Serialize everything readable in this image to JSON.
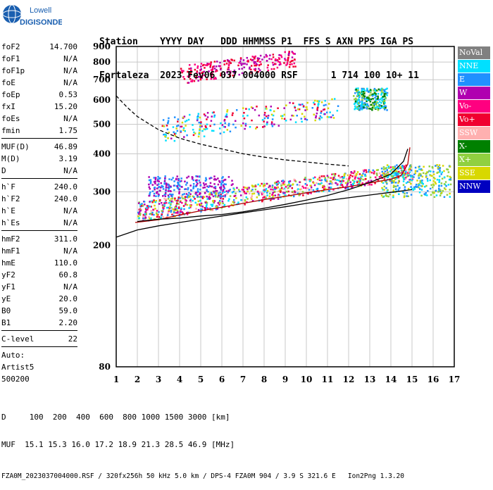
{
  "logo": {
    "line1": "Lowell",
    "line2": "DIGISONDE"
  },
  "header": {
    "line1": "Station    YYYY DAY   DDD HHMMSS P1  FFS S AXN PPS IGA PS",
    "line2": "Fortaleza  2023 Fev06 037 004000 RSF      1 714 100 10+ 11"
  },
  "params": {
    "group1": [
      {
        "name": "foF2",
        "value": "14.700"
      },
      {
        "name": "foF1",
        "value": "N/A"
      },
      {
        "name": "foF1p",
        "value": "N/A"
      },
      {
        "name": "foE",
        "value": "N/A"
      },
      {
        "name": "foEp",
        "value": "0.53"
      },
      {
        "name": "fxI",
        "value": "15.20"
      },
      {
        "name": "foEs",
        "value": "N/A"
      },
      {
        "name": "fmin",
        "value": "1.75"
      }
    ],
    "group2": [
      {
        "name": "MUF(D)",
        "value": "46.89"
      },
      {
        "name": "M(D)",
        "value": "3.19"
      },
      {
        "name": "D",
        "value": "N/A"
      }
    ],
    "group3": [
      {
        "name": "h`F",
        "value": "240.0"
      },
      {
        "name": "h`F2",
        "value": "240.0"
      },
      {
        "name": "h`E",
        "value": "N/A"
      },
      {
        "name": "h`Es",
        "value": "N/A"
      }
    ],
    "group4": [
      {
        "name": "hmF2",
        "value": "311.0"
      },
      {
        "name": "hmF1",
        "value": "N/A"
      },
      {
        "name": "hmE",
        "value": "110.0"
      },
      {
        "name": "yF2",
        "value": "60.8"
      },
      {
        "name": "yF1",
        "value": "N/A"
      },
      {
        "name": "yE",
        "value": "20.0"
      },
      {
        "name": "B0",
        "value": "59.0"
      },
      {
        "name": "B1",
        "value": "2.20"
      }
    ],
    "group5": [
      {
        "name": "C-level",
        "value": "22"
      }
    ],
    "auto": {
      "l1": "Auto:",
      "l2": "Artist5",
      "l3": "500200"
    }
  },
  "footer": {
    "d_line": "D     100  200  400  600  800 1000 1500 3000 [km]",
    "muf_line": "MUF  15.1 15.3 16.0 17.2 18.9 21.3 28.5 46.9 [MHz]",
    "file_line": "FZA0M_2023037004000.RSF / 320fx256h 50 kHz 5.0 km / DPS-4 FZA0M 904 / 3.9 S 321.6 E   Ion2Png 1.3.20"
  },
  "legend": [
    {
      "label": "NoVal",
      "color": "#808080"
    },
    {
      "label": "NNE",
      "color": "#00e0ff"
    },
    {
      "label": "E",
      "color": "#2090ff"
    },
    {
      "label": "W",
      "color": "#b000b0"
    },
    {
      "label": "Vo-",
      "color": "#ff0080"
    },
    {
      "label": "Vo+",
      "color": "#f00030"
    },
    {
      "label": "SSW",
      "color": "#ffb0b0"
    },
    {
      "label": "X-",
      "color": "#008000"
    },
    {
      "label": "X+",
      "color": "#90d040"
    },
    {
      "label": "SSE",
      "color": "#d8d800"
    },
    {
      "label": "NNW",
      "color": "#0000c0"
    }
  ],
  "chart_data": {
    "type": "scatter",
    "title": "",
    "xlabel": "",
    "ylabel": "",
    "xlim": [
      1,
      17
    ],
    "ylim": [
      80,
      900
    ],
    "x_ticks": [
      1,
      2,
      3,
      4,
      5,
      6,
      7,
      8,
      9,
      10,
      11,
      12,
      13,
      14,
      15,
      16,
      17
    ],
    "y_ticks": [
      80,
      200,
      300,
      400,
      500,
      600,
      700,
      800,
      900
    ],
    "y_scale": "log",
    "grid": true,
    "legend_position": "right",
    "traces": [
      {
        "points": [
          [
            1.9,
            238
          ],
          [
            3,
            243
          ],
          [
            4,
            252
          ],
          [
            5,
            260
          ],
          [
            6,
            267
          ],
          [
            7,
            275
          ],
          [
            8,
            283
          ],
          [
            9,
            290
          ],
          [
            10,
            298
          ],
          [
            11,
            305
          ],
          [
            12,
            312
          ],
          [
            13,
            321
          ],
          [
            14,
            330
          ],
          [
            14.5,
            340
          ],
          [
            14.8,
            370
          ],
          [
            14.9,
            420
          ]
        ]
      },
      {
        "points": [
          [
            2.0,
            240
          ],
          [
            3,
            244
          ],
          [
            4,
            246
          ],
          [
            5,
            250
          ],
          [
            6,
            253
          ],
          [
            7,
            258
          ],
          [
            8,
            265
          ],
          [
            9,
            273
          ],
          [
            10,
            282
          ],
          [
            11,
            292
          ],
          [
            12,
            305
          ],
          [
            13,
            322
          ],
          [
            14,
            343
          ],
          [
            14.6,
            378
          ],
          [
            14.8,
            415
          ]
        ]
      },
      {
        "points": [
          [
            1,
            213
          ],
          [
            2,
            225
          ],
          [
            3,
            232
          ],
          [
            4,
            238
          ],
          [
            5,
            244
          ],
          [
            6,
            250
          ],
          [
            7,
            256
          ],
          [
            8,
            262
          ],
          [
            9,
            268
          ],
          [
            10,
            275
          ],
          [
            11,
            281
          ],
          [
            12,
            287
          ],
          [
            13,
            293
          ],
          [
            14,
            299
          ],
          [
            15,
            305
          ]
        ]
      },
      {
        "points": [
          [
            1,
            620
          ],
          [
            1.5,
            570
          ],
          [
            2,
            530
          ],
          [
            3,
            480
          ],
          [
            4,
            450
          ],
          [
            5,
            430
          ],
          [
            6,
            415
          ],
          [
            7,
            400
          ],
          [
            8,
            390
          ],
          [
            9,
            382
          ],
          [
            10,
            376
          ],
          [
            11,
            370
          ],
          [
            12,
            365
          ]
        ]
      }
    ],
    "clusters": [
      {
        "x": [
          2.0,
          15.0
        ],
        "y": [
          238,
          330
        ],
        "colors": [
          "Vo-",
          "Vo+",
          "W",
          "E",
          "X+",
          "SSE",
          "SSW",
          "NNE"
        ]
      },
      {
        "x": [
          13.5,
          16.8
        ],
        "y": [
          290,
          370
        ],
        "colors": [
          "NNE",
          "E",
          "SSE",
          "X+"
        ]
      },
      {
        "x": [
          2.5,
          6.5
        ],
        "y": [
          290,
          340
        ],
        "colors": [
          "W",
          "E"
        ]
      },
      {
        "x": [
          3.0,
          11.5
        ],
        "y": [
          470,
          640
        ],
        "colors": [
          "E",
          "NNE",
          "W",
          "Vo+",
          "SSE"
        ]
      },
      {
        "x": [
          12.2,
          13.8
        ],
        "y": [
          560,
          660
        ],
        "colors": [
          "X-",
          "X+",
          "NNE",
          "E"
        ]
      },
      {
        "x": [
          4.0,
          9.5
        ],
        "y": [
          700,
          860
        ],
        "colors": [
          "Vo-",
          "Vo+",
          "W"
        ]
      }
    ]
  }
}
